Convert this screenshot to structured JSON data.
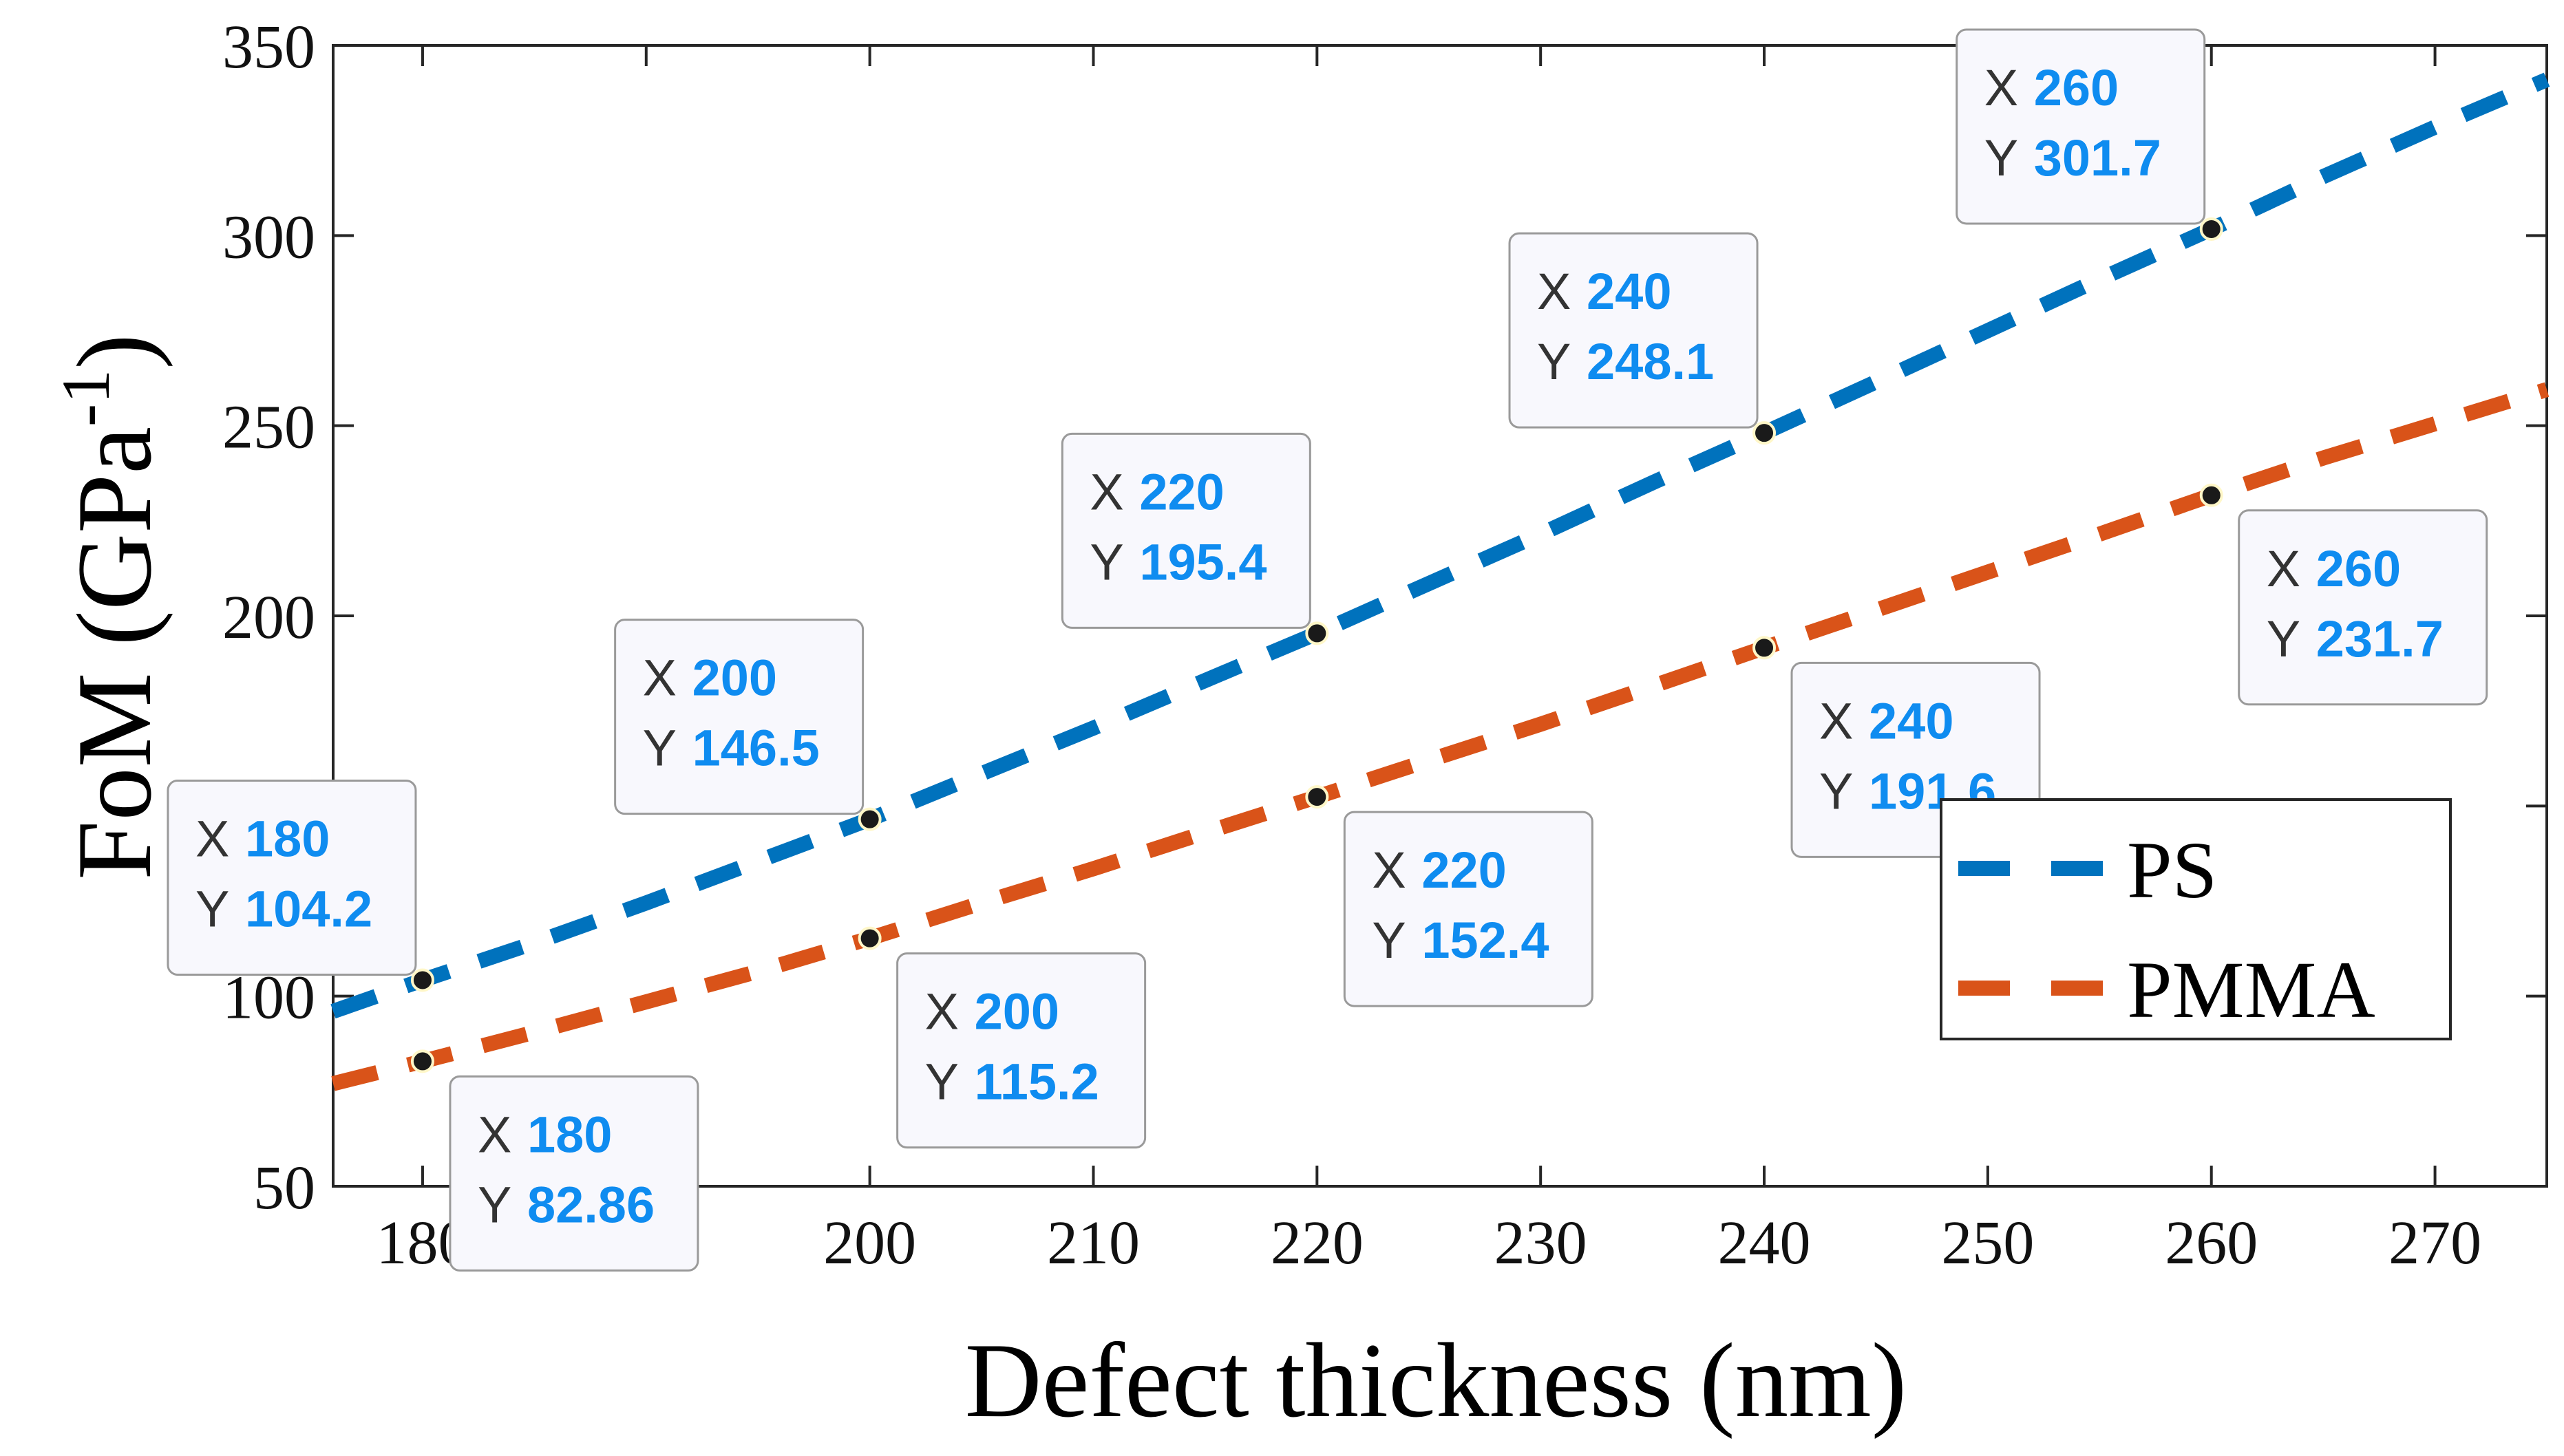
{
  "chart_data": {
    "type": "line",
    "xlabel": "Defect thickness (nm)",
    "ylabel": "FoM (GPa",
    "ylabel_sup": "-1",
    "ylabel_close": ")",
    "xlim": [
      176,
      275
    ],
    "ylim": [
      50,
      350
    ],
    "xticks": [
      180,
      190,
      200,
      210,
      220,
      230,
      240,
      250,
      260,
      270
    ],
    "yticks": [
      50,
      100,
      150,
      200,
      250,
      300,
      350
    ],
    "ytick_labels": [
      "50",
      "100",
      "",
      "200",
      "250",
      "300",
      "350"
    ],
    "grid": false,
    "legend_position": "lower-right",
    "series": [
      {
        "name": "PS",
        "color": "#0072BD",
        "line_style": "dashed",
        "x": [
          176,
          180,
          185,
          190,
          195,
          200,
          205,
          210,
          215,
          220,
          225,
          230,
          235,
          240,
          245,
          250,
          255,
          260,
          265,
          270,
          275
        ],
        "y": [
          96,
          104.2,
          114,
          124.5,
          135.5,
          146.5,
          158.5,
          170.5,
          183,
          195.4,
          208.5,
          221.5,
          235,
          248.1,
          261.5,
          275,
          288.5,
          301.7,
          315.5,
          328.5,
          341
        ]
      },
      {
        "name": "PMMA",
        "color": "#D95319",
        "line_style": "dashed",
        "x": [
          176,
          180,
          185,
          190,
          195,
          200,
          205,
          210,
          215,
          220,
          225,
          230,
          235,
          240,
          245,
          250,
          255,
          260,
          265,
          270,
          275
        ],
        "y": [
          77,
          82.86,
          90.5,
          98.5,
          106.5,
          115.2,
          124.5,
          133.5,
          143,
          152.4,
          162,
          171.5,
          181.5,
          191.6,
          201.5,
          211.5,
          221.5,
          231.7,
          241.5,
          250.5,
          259.5
        ]
      }
    ],
    "datatips": [
      {
        "series": "PS",
        "x_label": "X",
        "y_label": "Y",
        "x": "180",
        "y": "104.2",
        "side": "upper-left"
      },
      {
        "series": "PS",
        "x_label": "X",
        "y_label": "Y",
        "x": "200",
        "y": "146.5",
        "side": "upper-left"
      },
      {
        "series": "PS",
        "x_label": "X",
        "y_label": "Y",
        "x": "220",
        "y": "195.4",
        "side": "upper-left"
      },
      {
        "series": "PS",
        "x_label": "X",
        "y_label": "Y",
        "x": "240",
        "y": "248.1",
        "side": "upper-left"
      },
      {
        "series": "PS",
        "x_label": "X",
        "y_label": "Y",
        "x": "260",
        "y": "301.7",
        "side": "upper-left"
      },
      {
        "series": "PMMA",
        "x_label": "X",
        "y_label": "Y",
        "x": "180",
        "y": "82.86",
        "side": "lower-right"
      },
      {
        "series": "PMMA",
        "x_label": "X",
        "y_label": "Y",
        "x": "200",
        "y": "115.2",
        "side": "lower-right"
      },
      {
        "series": "PMMA",
        "x_label": "X",
        "y_label": "Y",
        "x": "220",
        "y": "152.4",
        "side": "lower-right"
      },
      {
        "series": "PMMA",
        "x_label": "X",
        "y_label": "Y",
        "x": "240",
        "y": "191.6",
        "side": "lower-right"
      },
      {
        "series": "PMMA",
        "x_label": "X",
        "y_label": "Y",
        "x": "260",
        "y": "231.7",
        "side": "lower-right"
      }
    ],
    "datatip_value_color": "#0F8CF0"
  }
}
